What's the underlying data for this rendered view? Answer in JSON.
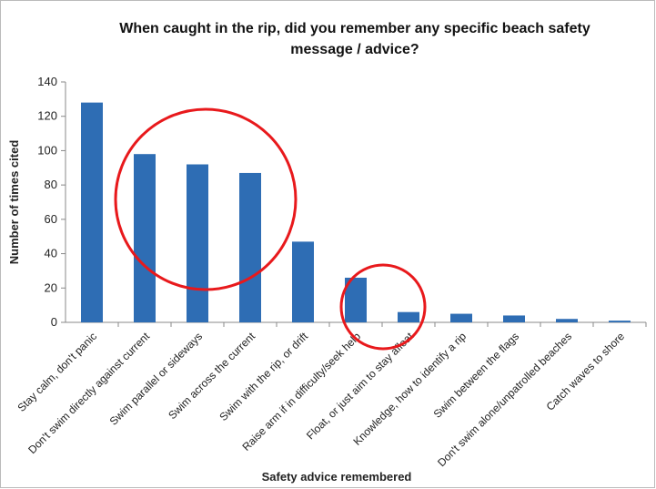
{
  "chart_data": {
    "type": "bar",
    "title": "When caught in the rip, did you remember any specific beach safety message / advice?",
    "x_label": "Safety advice remembered",
    "y_label": "Number of times cited",
    "categories": [
      "Stay calm, don't panic",
      "Don't swim directly against current",
      "Swim parallel or sideways",
      "Swim across the current",
      "Swim with the rip, or drift",
      "Raise arm if in difficulty/seek help",
      "Float, or just aim to stay afloat",
      "Knowledge, how to identify a rip",
      "Swim between the flags",
      "Don't swim alone/unpatrolled beaches",
      "Catch waves to shore"
    ],
    "values": [
      128,
      98,
      92,
      87,
      47,
      26,
      6,
      5,
      4,
      2,
      1
    ],
    "color": "#2e6db4",
    "ylim": [
      0,
      140
    ],
    "yticks": [
      0,
      20,
      40,
      60,
      80,
      100,
      120,
      140
    ],
    "grid": false
  }
}
